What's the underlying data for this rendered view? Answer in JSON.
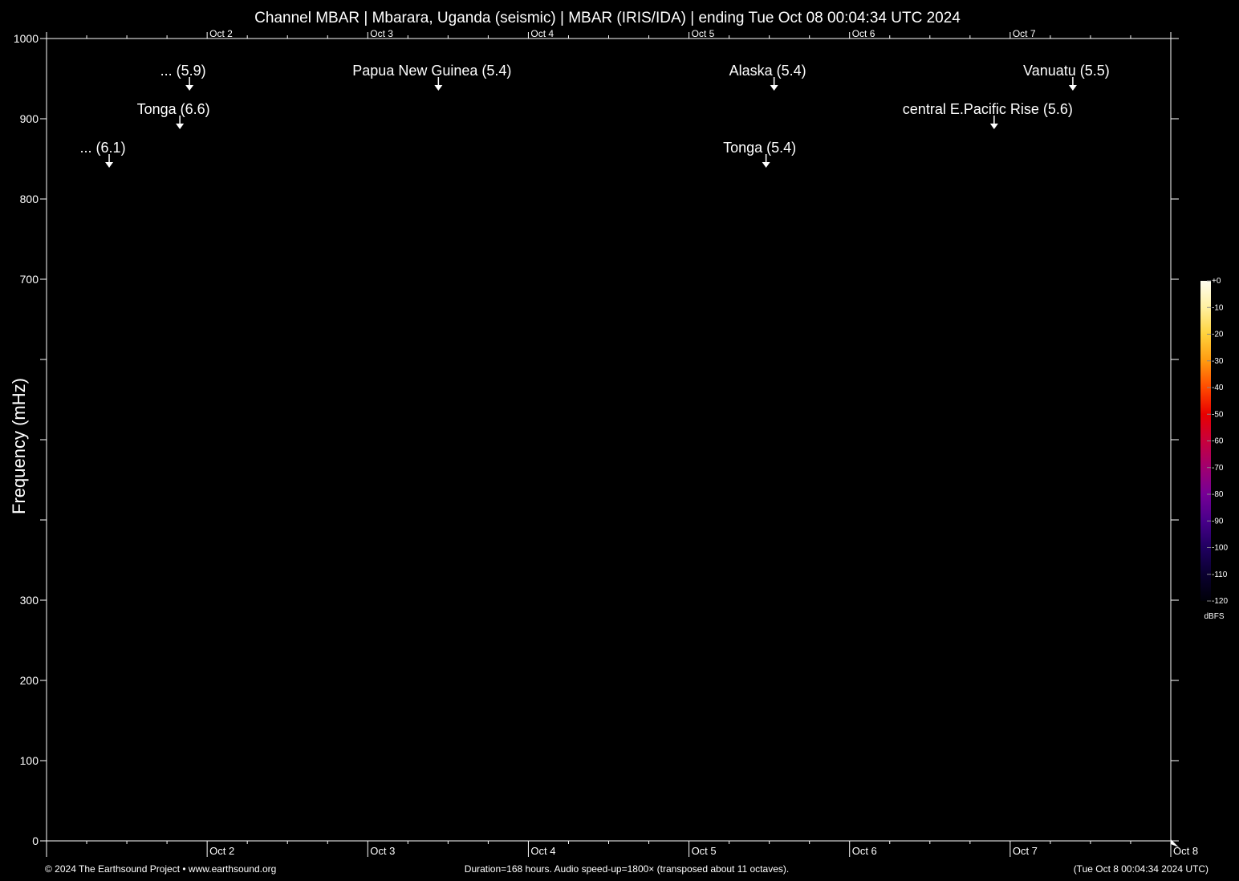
{
  "chart_data": {
    "type": "heatmap",
    "title": "Channel MBAR | Mbarara, Uganda (seismic) | MBAR (IRIS/IDA) | ending Tue Oct 08 00:04:34 UTC 2024",
    "ylabel": "Frequency (mHz)",
    "xlabel": "",
    "ylim": [
      0,
      1000
    ],
    "y_ticks": [
      0,
      100,
      200,
      300,
      400,
      500,
      600,
      700,
      800,
      900,
      1000
    ],
    "y_tick_labels": [
      "0",
      "100",
      "200",
      "300",
      "",
      "",
      "",
      "700",
      "800",
      "900",
      "1000"
    ],
    "x_range_days": [
      1.0,
      8.0
    ],
    "x_day_ticks": [
      {
        "day": 2,
        "label": "Oct  2"
      },
      {
        "day": 3,
        "label": "Oct  3"
      },
      {
        "day": 4,
        "label": "Oct  4"
      },
      {
        "day": 5,
        "label": "Oct  5"
      },
      {
        "day": 6,
        "label": "Oct  6"
      },
      {
        "day": 7,
        "label": "Oct  7"
      },
      {
        "day": 8,
        "label": "Oct  8"
      }
    ],
    "events": [
      {
        "label": "... (6.1)",
        "day": 1.39,
        "row": 3
      },
      {
        "label": "Tonga (6.6)",
        "day": 1.83,
        "row": 2
      },
      {
        "label": "... (5.9)",
        "day": 1.89,
        "row": 1
      },
      {
        "label": "Papua New Guinea (5.4)",
        "day": 3.44,
        "row": 1
      },
      {
        "label": "Tonga (5.4)",
        "day": 5.48,
        "row": 3
      },
      {
        "label": "Alaska (5.4)",
        "day": 5.53,
        "row": 1
      },
      {
        "label": "central E.Pacific Rise (5.6)",
        "day": 6.9,
        "row": 2
      },
      {
        "label": "Vanuatu (5.5)",
        "day": 7.39,
        "row": 1
      }
    ],
    "colorbar": {
      "unit": "dBFS",
      "range": [
        -120,
        0
      ],
      "ticks": [
        "+0",
        "-10",
        "-20",
        "-30",
        "-40",
        "-50",
        "-60",
        "-70",
        "-80",
        "-90",
        "-100",
        "-110",
        "-120"
      ],
      "colors": [
        "#fffef0",
        "#fff0a0",
        "#ffd23c",
        "#ff9a10",
        "#ff4a00",
        "#e80000",
        "#c8003c",
        "#a00070",
        "#760096",
        "#48008a",
        "#200060",
        "#0a0030",
        "#000008"
      ]
    }
  },
  "footer": {
    "copyright": "© 2024 The Earthsound Project • www.earthsound.org",
    "info": "Duration=168 hours. Audio speed-up=1800× (transposed about 11 octaves).",
    "timestamp": "(Tue Oct  8 00:04:34 2024 UTC)"
  }
}
